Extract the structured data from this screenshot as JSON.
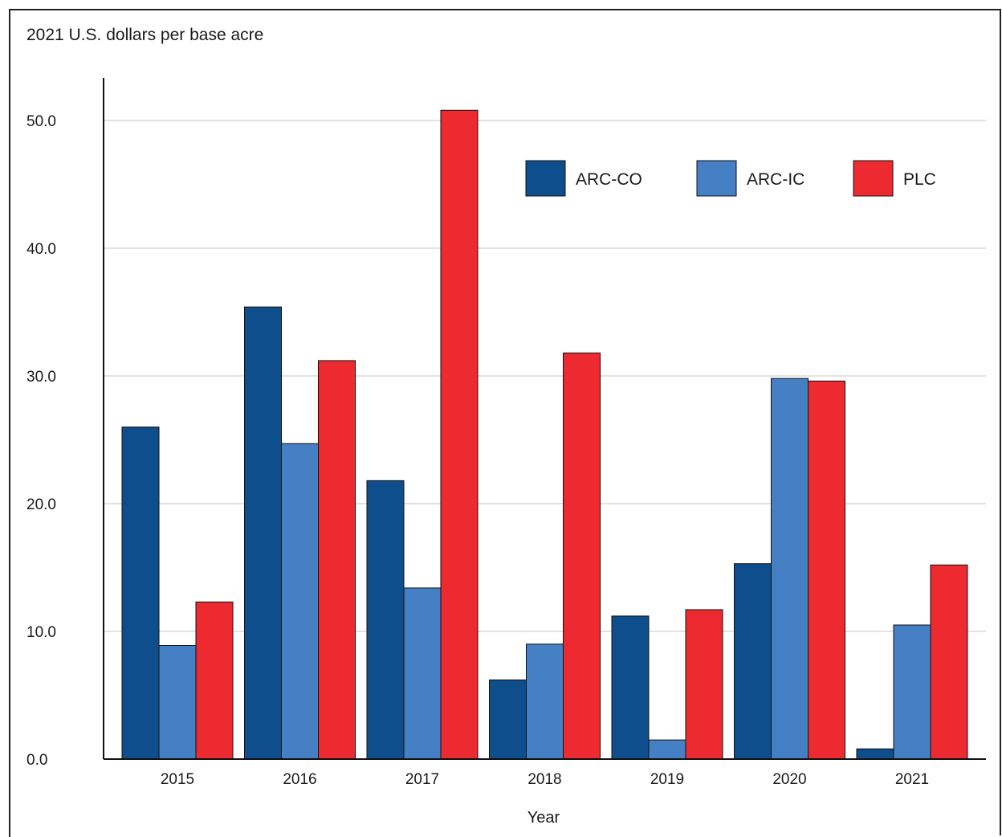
{
  "chart_data": {
    "type": "bar",
    "title": "",
    "ylabel": "2021 U.S. dollars per base acre",
    "xlabel": "Year",
    "categories": [
      "2015",
      "2016",
      "2017",
      "2018",
      "2019",
      "2020",
      "2021"
    ],
    "series": [
      {
        "name": "ARC-CO",
        "color": "#0f4e8c",
        "values": [
          26.0,
          35.4,
          21.8,
          6.2,
          11.2,
          15.3,
          0.8
        ]
      },
      {
        "name": "ARC-IC",
        "color": "#4580c4",
        "values": [
          8.9,
          24.7,
          13.4,
          9.0,
          1.5,
          29.8,
          10.5
        ]
      },
      {
        "name": "PLC",
        "color": "#ec2a30",
        "values": [
          12.3,
          31.2,
          50.8,
          31.8,
          11.7,
          29.6,
          15.2
        ]
      }
    ],
    "yticks": [
      "0.0",
      "10.0",
      "20.0",
      "30.0",
      "40.0",
      "50.0"
    ],
    "ylim": [
      0,
      50
    ],
    "grid": true,
    "legend_position": "top-right"
  }
}
